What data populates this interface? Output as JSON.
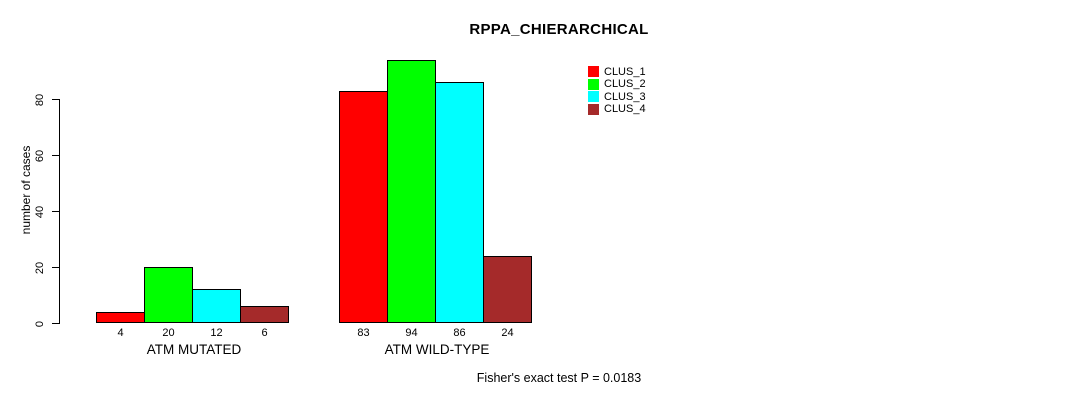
{
  "title": "RPPA_CHIERARCHICAL",
  "footer": "Fisher's exact test P = 0.0183",
  "y_axis": {
    "label": "number of cases",
    "ticks": [
      0,
      20,
      40,
      60,
      80
    ]
  },
  "legend": {
    "position": "top-right",
    "items": [
      {
        "label": "CLUS_1",
        "color": "#FF0000"
      },
      {
        "label": "CLUS_2",
        "color": "#00FF00"
      },
      {
        "label": "CLUS_3",
        "color": "#00FFFF"
      },
      {
        "label": "CLUS_4",
        "color": "#A52A2A"
      }
    ]
  },
  "chart_data": {
    "type": "bar",
    "title": "RPPA_CHIERARCHICAL",
    "xlabel": "",
    "ylabel": "number of cases",
    "ylim": [
      0,
      94
    ],
    "yticks": [
      0,
      20,
      40,
      60,
      80
    ],
    "grid": false,
    "legend_position": "top-right",
    "bar_value_labels": true,
    "categories": [
      "ATM MUTATED",
      "ATM WILD-TYPE"
    ],
    "series": [
      {
        "name": "CLUS_1",
        "color": "#FF0000",
        "values": [
          4,
          83
        ]
      },
      {
        "name": "CLUS_2",
        "color": "#00FF00",
        "values": [
          20,
          94
        ]
      },
      {
        "name": "CLUS_3",
        "color": "#00FFFF",
        "values": [
          12,
          86
        ]
      },
      {
        "name": "CLUS_4",
        "color": "#A52A2A",
        "values": [
          6,
          24
        ]
      }
    ],
    "annotation": "Fisher's exact test P = 0.0183"
  }
}
